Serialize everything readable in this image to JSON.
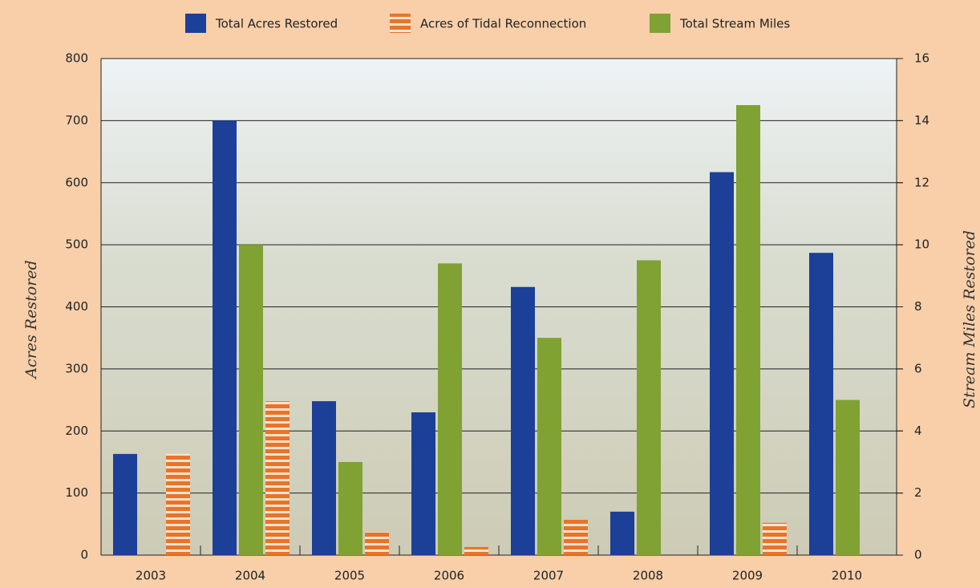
{
  "chart_data": {
    "type": "bar",
    "y_label": "Acres Restored",
    "y2_label": "Stream Miles Restored",
    "categories": [
      "2003",
      "2004",
      "2005",
      "2006",
      "2007",
      "2008",
      "2009",
      "2010"
    ],
    "series": [
      {
        "name": "Total Acres Restored",
        "color": "#1c3f98",
        "values": [
          163,
          700,
          248,
          230,
          432,
          70,
          617,
          487
        ]
      },
      {
        "name": "Acres of Tidal Reconnection",
        "color": "#e8742a",
        "values": [
          163,
          248,
          37,
          13,
          57,
          null,
          52,
          null
        ]
      },
      {
        "name": "Total Stream Miles",
        "color": "#7fa232",
        "axis": "y2",
        "values": [
          null,
          10,
          3,
          9.4,
          7,
          9.5,
          14.5,
          5
        ]
      }
    ],
    "ylim": [
      0,
      800
    ],
    "yticks": [
      0,
      100,
      200,
      300,
      400,
      500,
      600,
      700,
      800
    ],
    "y2lim": [
      0,
      16
    ],
    "y2ticks": [
      0,
      2,
      4,
      6,
      8,
      10,
      12,
      14,
      16
    ],
    "grid": true,
    "legend": "top"
  }
}
